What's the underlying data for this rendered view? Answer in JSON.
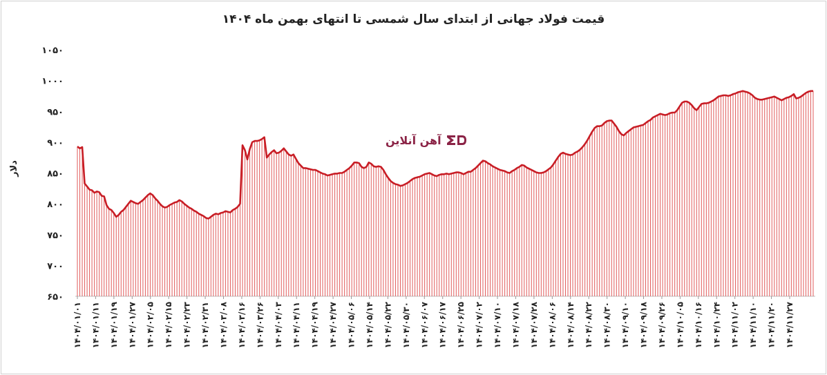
{
  "chart_data": {
    "type": "area",
    "title": "قیمت فولاد جهانی از ابتدای سال شمسی تا انتهای بهمن ماه ۱۴۰۴",
    "xlabel": "",
    "ylabel": "دلار",
    "ylim": [
      650,
      1050
    ],
    "yticks": [
      "۶۵۰",
      "۷۰۰",
      "۷۵۰",
      "۸۰۰",
      "۸۵۰",
      "۹۰۰",
      "۹۵۰",
      "۱۰۰۰",
      "۱۰۵۰"
    ],
    "ytick_values": [
      650,
      700,
      750,
      800,
      850,
      900,
      950,
      1000,
      1050
    ],
    "xticks": [
      "۱۴۰۴/۰۱/۰۱",
      "۱۴۰۴/۰۱/۱۱",
      "۱۴۰۴/۰۱/۱۹",
      "۱۴۰۴/۰۱/۲۷",
      "۱۴۰۴/۰۲/۰۵",
      "۱۴۰۴/۰۲/۱۵",
      "۱۴۰۴/۰۲/۲۳",
      "۱۴۰۴/۰۲/۳۱",
      "۱۴۰۴/۰۳/۰۸",
      "۱۴۰۴/۰۳/۱۶",
      "۱۴۰۴/۰۳/۲۶",
      "۱۴۰۴/۰۴/۰۳",
      "۱۴۰۴/۰۴/۱۱",
      "۱۴۰۴/۰۴/۱۹",
      "۱۴۰۴/۰۴/۲۷",
      "۱۴۰۴/۰۵/۰۶",
      "۱۴۰۴/۰۵/۱۴",
      "۱۴۰۴/۰۵/۲۲",
      "۱۴۰۴/۰۵/۳۰",
      "۱۴۰۴/۰۶/۰۷",
      "۱۴۰۴/۰۶/۱۷",
      "۱۴۰۴/۰۶/۲۵",
      "۱۴۰۴/۰۷/۰۲",
      "۱۴۰۴/۰۷/۱۰",
      "۱۴۰۴/۰۷/۱۸",
      "۱۴۰۴/۰۷/۲۸",
      "۱۴۰۴/۰۸/۰۶",
      "۱۴۰۴/۰۸/۱۴",
      "۱۴۰۴/۰۸/۲۲",
      "۱۴۰۴/۰۸/۳۰",
      "۱۴۰۴/۰۹/۱۰",
      "۱۴۰۴/۰۹/۱۸",
      "۱۴۰۴/۰۹/۲۶",
      "۱۴۰۴/۱۰/۰۵",
      "۱۴۰۴/۱۰/۱۶",
      "۱۴۰۴/۱۰/۲۴",
      "۱۴۰۴/۱۱/۰۲",
      "۱۴۰۴/۱۱/۱۰",
      "۱۴۰۴/۱۱/۲۰",
      "۱۴۰۴/۱۱/۲۷"
    ],
    "series": [
      {
        "values": [
          893,
          890,
          892,
          833,
          828,
          823,
          822,
          818,
          820,
          819,
          813,
          812,
          798,
          792,
          790,
          785,
          779,
          782,
          787,
          790,
          795,
          800,
          805,
          803,
          801,
          800,
          803,
          806,
          810,
          814,
          817,
          814,
          809,
          805,
          800,
          796,
          794,
          795,
          798,
          800,
          802,
          803,
          806,
          804,
          800,
          797,
          794,
          792,
          789,
          787,
          784,
          782,
          780,
          777,
          776,
          779,
          782,
          784,
          783,
          785,
          786,
          788,
          787,
          786,
          790,
          792,
          795,
          800,
          895,
          887,
          872,
          889,
          900,
          902,
          902,
          903,
          905,
          908,
          875,
          880,
          884,
          887,
          882,
          883,
          886,
          890,
          885,
          880,
          878,
          880,
          873,
          866,
          862,
          858,
          858,
          857,
          856,
          855,
          855,
          853,
          851,
          849,
          848,
          846,
          847,
          848,
          849,
          849,
          850,
          850,
          852,
          855,
          858,
          862,
          867,
          867,
          866,
          860,
          858,
          860,
          867,
          865,
          861,
          860,
          861,
          860,
          855,
          848,
          842,
          837,
          834,
          832,
          831,
          829,
          830,
          832,
          834,
          837,
          840,
          842,
          843,
          844,
          846,
          848,
          849,
          850,
          848,
          846,
          845,
          847,
          848,
          848,
          849,
          848,
          849,
          850,
          851,
          851,
          850,
          848,
          850,
          852,
          852,
          855,
          858,
          862,
          866,
          870,
          869,
          866,
          864,
          861,
          859,
          857,
          855,
          854,
          853,
          851,
          850,
          853,
          855,
          858,
          860,
          863,
          862,
          859,
          857,
          855,
          853,
          851,
          850,
          850,
          851,
          853,
          856,
          859,
          864,
          870,
          876,
          881,
          883,
          881,
          880,
          879,
          880,
          883,
          885,
          888,
          892,
          897,
          903,
          910,
          917,
          923,
          926,
          926,
          927,
          931,
          934,
          935,
          935,
          930,
          925,
          918,
          913,
          911,
          915,
          918,
          921,
          924,
          925,
          926,
          927,
          928,
          931,
          934,
          936,
          940,
          942,
          944,
          946,
          945,
          944,
          945,
          947,
          948,
          948,
          952,
          958,
          964,
          966,
          966,
          964,
          960,
          955,
          952,
          957,
          962,
          963,
          963,
          964,
          966,
          968,
          971,
          974,
          975,
          976,
          976,
          975,
          976,
          978,
          979,
          981,
          982,
          983,
          982,
          981,
          979,
          976,
          972,
          970,
          969,
          969,
          970,
          971,
          972,
          973,
          974,
          972,
          970,
          968,
          970,
          972,
          973,
          975,
          978,
          971,
          972,
          974,
          977,
          980,
          982,
          983,
          983
        ]
      }
    ]
  }
}
